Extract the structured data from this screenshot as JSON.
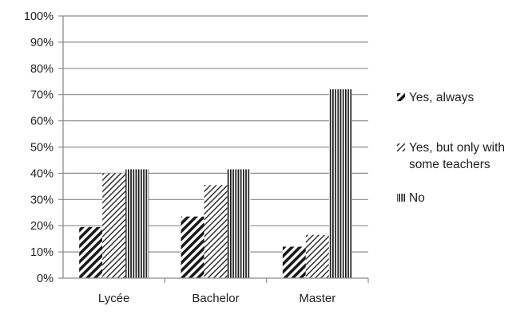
{
  "chart_data": {
    "type": "bar",
    "categories": [
      "Lycée",
      "Bachelor",
      "Master"
    ],
    "series": [
      {
        "name": "Yes, always",
        "values": [
          19.5,
          23.5,
          12
        ],
        "pattern": "diag-thick"
      },
      {
        "name": "Yes, but only with some teachers",
        "values": [
          40,
          35.5,
          16.5
        ],
        "pattern": "diag-thin"
      },
      {
        "name": "No",
        "values": [
          41.5,
          41.5,
          72
        ],
        "pattern": "vertical"
      }
    ],
    "ylim": [
      0,
      100
    ],
    "yticks": [
      "0%",
      "10%",
      "20%",
      "30%",
      "40%",
      "50%",
      "60%",
      "70%",
      "80%",
      "90%",
      "100%"
    ],
    "title": "",
    "xlabel": "",
    "ylabel": "",
    "grid": "horizontal",
    "legend_position": "right",
    "legend_lines": [
      [
        "Yes, always"
      ],
      [
        "Yes, but only with",
        "some teachers"
      ],
      [
        "No"
      ]
    ],
    "colors": {
      "ink": "#1a1a1a",
      "grid": "#8c8c8c",
      "background": "#ffffff"
    }
  }
}
